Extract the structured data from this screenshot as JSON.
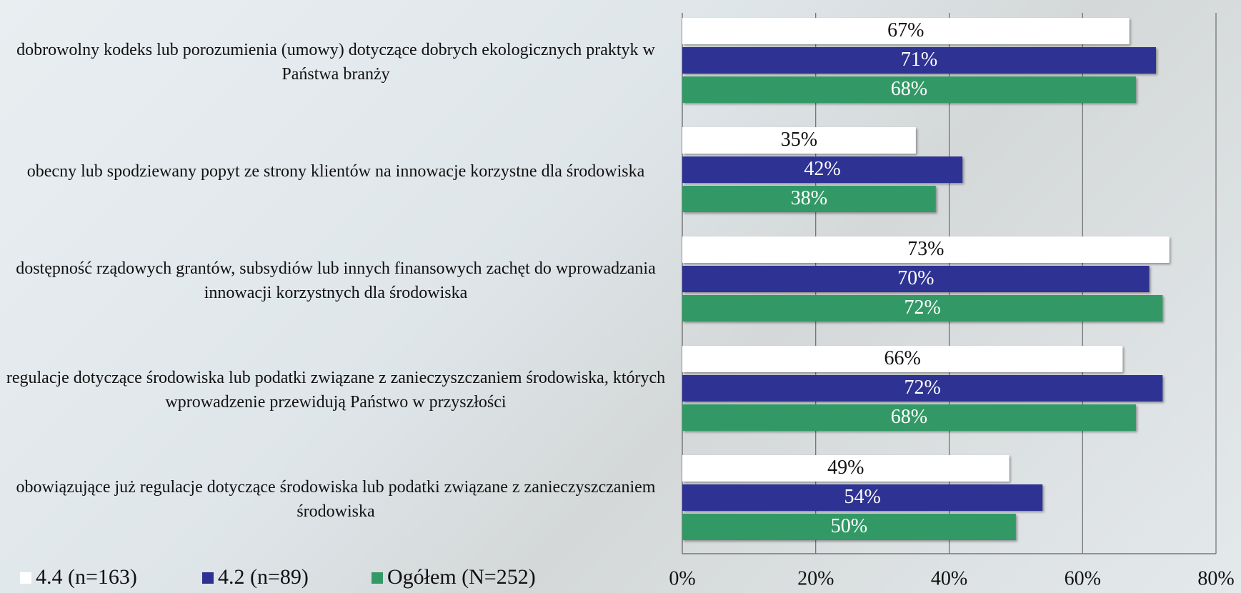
{
  "chart_data": {
    "type": "bar",
    "orientation": "horizontal",
    "categories": [
      "dobrowolny kodeks lub porozumienia (umowy) dotyczące dobrych ekologicznych praktyk w Państwa branży",
      "obecny lub spodziewany popyt ze strony klientów na innowacje korzystne dla środowiska",
      "dostępność rządowych grantów, subsydiów lub innych finansowych zachęt do wprowadzania innowacji korzystnych dla środowiska",
      "regulacje dotyczące środowiska lub podatki związane z zanieczyszczaniem środowiska, których wprowadzenie przewidują Państwo w przyszłości",
      "obowiązujące już regulacje dotyczące środowiska lub podatki związane z zanieczyszczaniem środowiska"
    ],
    "series": [
      {
        "name": "4.4 (n=163)",
        "color": "#ffffff",
        "values": [
          67,
          35,
          73,
          66,
          49
        ],
        "value_labels": [
          "67%",
          "35%",
          "73%",
          "66%",
          "49%"
        ]
      },
      {
        "name": "4.2 (n=89)",
        "color": "#2e3192",
        "values": [
          71,
          42,
          70,
          72,
          54
        ],
        "value_labels": [
          "71%",
          "42%",
          "70%",
          "72%",
          "54%"
        ]
      },
      {
        "name": "Ogółem (N=252)",
        "color": "#339966",
        "values": [
          68,
          38,
          72,
          68,
          50
        ],
        "value_labels": [
          "68%",
          "38%",
          "72%",
          "68%",
          "50%"
        ]
      }
    ],
    "xlim": [
      0,
      80
    ],
    "xticks": [
      {
        "value": 0,
        "label": "0%"
      },
      {
        "value": 20,
        "label": "20%"
      },
      {
        "value": 40,
        "label": "40%"
      },
      {
        "value": 60,
        "label": "60%"
      },
      {
        "value": 80,
        "label": "80%"
      }
    ],
    "grid": true,
    "legend": "bottom-left"
  }
}
